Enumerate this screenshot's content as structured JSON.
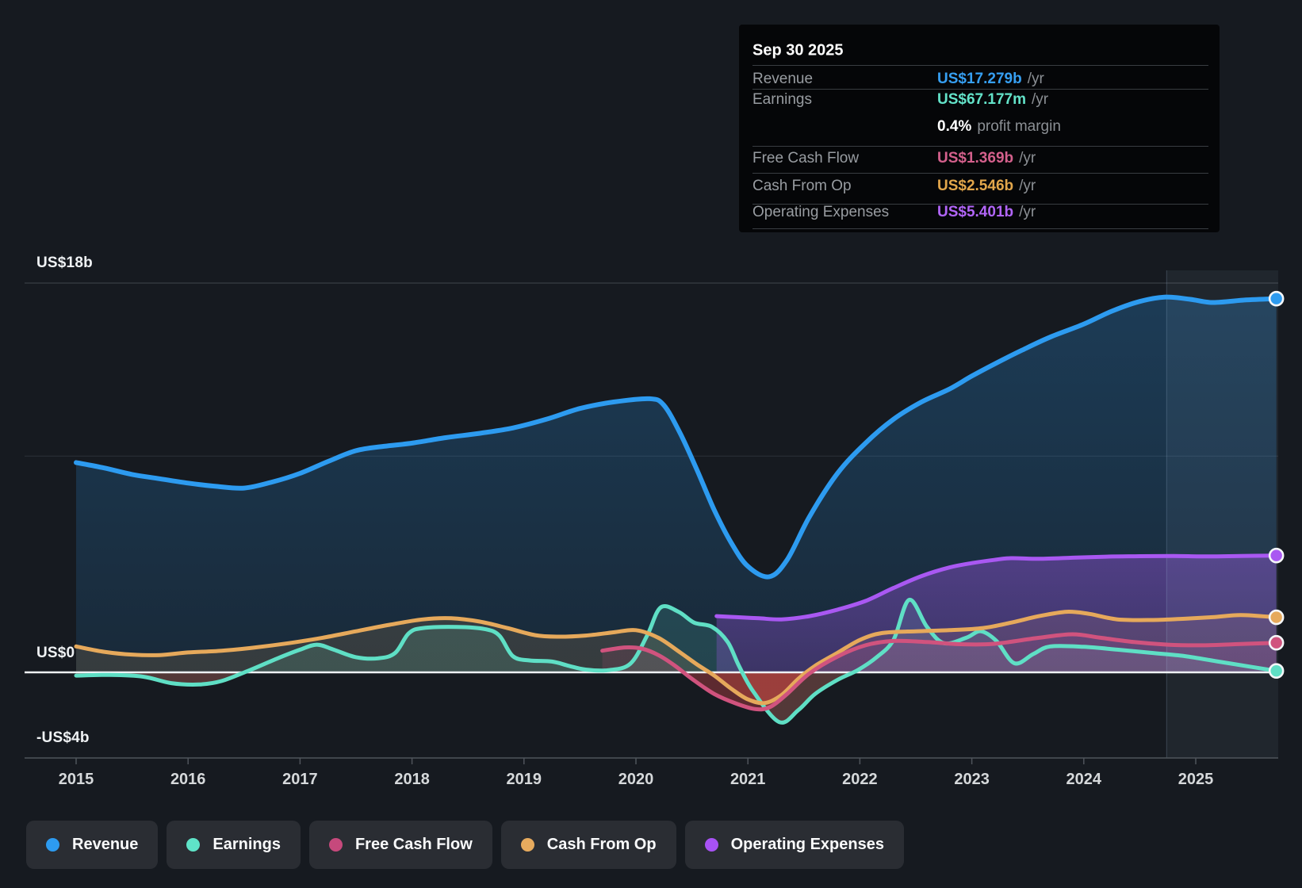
{
  "tooltip": {
    "title": "Sep 30 2025",
    "rows": [
      {
        "key": "revenue",
        "label": "Revenue",
        "value": "US$17.279b",
        "suffix": "/yr",
        "color": "#369ff2"
      },
      {
        "key": "earnings",
        "label": "Earnings",
        "value": "US$67.177m",
        "suffix": "/yr",
        "color": "#63e3c9"
      },
      {
        "key": "profit-margin",
        "label": "",
        "value": "0.4%",
        "suffix": "profit margin",
        "color": "#ffffff"
      },
      {
        "key": "free-cash-flow",
        "label": "Free Cash Flow",
        "value": "US$1.369b",
        "suffix": "/yr",
        "color": "#d4608c"
      },
      {
        "key": "cash-from-op",
        "label": "Cash From Op",
        "value": "US$2.546b",
        "suffix": "/yr",
        "color": "#e2a64b"
      },
      {
        "key": "operating-expenses",
        "label": "Operating Expenses",
        "value": "US$5.401b",
        "suffix": "/yr",
        "color": "#b165f7"
      }
    ]
  },
  "y_axis": {
    "labels": [
      {
        "text": "US$18b",
        "value": 18
      },
      {
        "text": "US$0",
        "value": 0
      },
      {
        "text": "-US$4b",
        "value": -4
      }
    ]
  },
  "x_axis": {
    "years": [
      "2015",
      "2016",
      "2017",
      "2018",
      "2019",
      "2020",
      "2021",
      "2022",
      "2023",
      "2024",
      "2025"
    ]
  },
  "legend": [
    {
      "key": "revenue",
      "label": "Revenue",
      "color": "#2d9bf0"
    },
    {
      "key": "earnings",
      "label": "Earnings",
      "color": "#5fe3c8"
    },
    {
      "key": "free-cash-flow",
      "label": "Free Cash Flow",
      "color": "#c6497c"
    },
    {
      "key": "cash-from-op",
      "label": "Cash From Op",
      "color": "#e7ab5e"
    },
    {
      "key": "operating-expenses",
      "label": "Operating Expenses",
      "color": "#a852f5"
    }
  ],
  "chart_data": {
    "type": "area",
    "x_unit": "fiscal year (TTM)",
    "xlim": [
      2015,
      2025.85
    ],
    "ylim_billions": [
      -4,
      18
    ],
    "y_gridlines_billions": [
      18,
      10
    ],
    "zero_line_billions": 0,
    "axis_line_billions": -4,
    "highlight_band_from_year": 2024.74,
    "grid": true,
    "legend_position": "bottom",
    "series": [
      {
        "name": "Revenue",
        "key": "revenue",
        "color": "#2d9bf0",
        "line_width": 6,
        "fill_opacity_top": 0.26,
        "fill_opacity_bottom": 0.12,
        "points": [
          [
            2015.0,
            9.7
          ],
          [
            2015.25,
            9.45
          ],
          [
            2015.5,
            9.15
          ],
          [
            2015.75,
            8.95
          ],
          [
            2016.0,
            8.75
          ],
          [
            2016.25,
            8.6
          ],
          [
            2016.5,
            8.52
          ],
          [
            2016.75,
            8.8
          ],
          [
            2017.0,
            9.2
          ],
          [
            2017.25,
            9.75
          ],
          [
            2017.5,
            10.25
          ],
          [
            2017.75,
            10.45
          ],
          [
            2018.0,
            10.6
          ],
          [
            2018.3,
            10.85
          ],
          [
            2018.6,
            11.05
          ],
          [
            2018.9,
            11.3
          ],
          [
            2019.2,
            11.7
          ],
          [
            2019.5,
            12.2
          ],
          [
            2019.8,
            12.5
          ],
          [
            2020.12,
            12.65
          ],
          [
            2020.25,
            12.35
          ],
          [
            2020.4,
            11.0
          ],
          [
            2020.55,
            9.3
          ],
          [
            2020.7,
            7.5
          ],
          [
            2020.85,
            6.0
          ],
          [
            2021.0,
            4.9
          ],
          [
            2021.19,
            4.42
          ],
          [
            2021.35,
            5.2
          ],
          [
            2021.55,
            7.2
          ],
          [
            2021.8,
            9.2
          ],
          [
            2022.05,
            10.6
          ],
          [
            2022.3,
            11.7
          ],
          [
            2022.55,
            12.5
          ],
          [
            2022.8,
            13.1
          ],
          [
            2023.0,
            13.7
          ],
          [
            2023.2,
            14.25
          ],
          [
            2023.45,
            14.9
          ],
          [
            2023.7,
            15.5
          ],
          [
            2024.0,
            16.1
          ],
          [
            2024.25,
            16.7
          ],
          [
            2024.5,
            17.15
          ],
          [
            2024.72,
            17.35
          ],
          [
            2024.95,
            17.25
          ],
          [
            2025.15,
            17.1
          ],
          [
            2025.45,
            17.22
          ],
          [
            2025.72,
            17.279
          ]
        ]
      },
      {
        "name": "Earnings",
        "key": "earnings",
        "color": "#5fdfc5",
        "line_width": 5,
        "fill_opacity_top": 0.15,
        "fill_opacity_bottom": 0.15,
        "points": [
          [
            2015.0,
            -0.15
          ],
          [
            2015.3,
            -0.12
          ],
          [
            2015.6,
            -0.2
          ],
          [
            2015.85,
            -0.5
          ],
          [
            2016.1,
            -0.56
          ],
          [
            2016.3,
            -0.4
          ],
          [
            2016.55,
            0.1
          ],
          [
            2016.8,
            0.65
          ],
          [
            2017.0,
            1.05
          ],
          [
            2017.15,
            1.28
          ],
          [
            2017.3,
            1.05
          ],
          [
            2017.5,
            0.7
          ],
          [
            2017.7,
            0.65
          ],
          [
            2017.85,
            0.9
          ],
          [
            2017.97,
            1.8
          ],
          [
            2018.1,
            2.05
          ],
          [
            2018.4,
            2.1
          ],
          [
            2018.65,
            2.0
          ],
          [
            2018.78,
            1.7
          ],
          [
            2018.9,
            0.75
          ],
          [
            2019.05,
            0.55
          ],
          [
            2019.25,
            0.5
          ],
          [
            2019.4,
            0.3
          ],
          [
            2019.55,
            0.13
          ],
          [
            2019.75,
            0.1
          ],
          [
            2019.95,
            0.4
          ],
          [
            2020.1,
            1.7
          ],
          [
            2020.22,
            3.0
          ],
          [
            2020.38,
            2.8
          ],
          [
            2020.52,
            2.3
          ],
          [
            2020.68,
            2.1
          ],
          [
            2020.82,
            1.4
          ],
          [
            2020.92,
            0.3
          ],
          [
            2021.05,
            -0.9
          ],
          [
            2021.28,
            -2.3
          ],
          [
            2021.45,
            -1.75
          ],
          [
            2021.6,
            -1.0
          ],
          [
            2021.8,
            -0.35
          ],
          [
            2021.98,
            0.1
          ],
          [
            2022.15,
            0.7
          ],
          [
            2022.3,
            1.5
          ],
          [
            2022.44,
            3.35
          ],
          [
            2022.6,
            2.1
          ],
          [
            2022.75,
            1.35
          ],
          [
            2022.95,
            1.6
          ],
          [
            2023.08,
            1.9
          ],
          [
            2023.22,
            1.45
          ],
          [
            2023.38,
            0.42
          ],
          [
            2023.55,
            0.85
          ],
          [
            2023.7,
            1.2
          ],
          [
            2024.0,
            1.18
          ],
          [
            2024.3,
            1.05
          ],
          [
            2024.6,
            0.9
          ],
          [
            2024.9,
            0.75
          ],
          [
            2025.2,
            0.5
          ],
          [
            2025.5,
            0.25
          ],
          [
            2025.72,
            0.067
          ]
        ]
      },
      {
        "name": "Cash From Op",
        "key": "cash-from-op",
        "color": "#e6a95b",
        "line_width": 5,
        "fill_opacity_top": 0.14,
        "fill_opacity_bottom": 0.14,
        "points": [
          [
            2015.0,
            1.2
          ],
          [
            2015.25,
            0.95
          ],
          [
            2015.5,
            0.82
          ],
          [
            2015.75,
            0.8
          ],
          [
            2016.0,
            0.92
          ],
          [
            2016.3,
            1.0
          ],
          [
            2016.6,
            1.15
          ],
          [
            2016.9,
            1.35
          ],
          [
            2017.2,
            1.6
          ],
          [
            2017.5,
            1.9
          ],
          [
            2017.8,
            2.2
          ],
          [
            2018.1,
            2.45
          ],
          [
            2018.35,
            2.5
          ],
          [
            2018.6,
            2.35
          ],
          [
            2018.85,
            2.05
          ],
          [
            2019.1,
            1.72
          ],
          [
            2019.3,
            1.65
          ],
          [
            2019.55,
            1.7
          ],
          [
            2019.8,
            1.85
          ],
          [
            2020.0,
            1.95
          ],
          [
            2020.2,
            1.6
          ],
          [
            2020.4,
            0.9
          ],
          [
            2020.55,
            0.35
          ],
          [
            2020.7,
            -0.15
          ],
          [
            2020.85,
            -0.75
          ],
          [
            2021.0,
            -1.25
          ],
          [
            2021.15,
            -1.42
          ],
          [
            2021.3,
            -1.05
          ],
          [
            2021.45,
            -0.3
          ],
          [
            2021.6,
            0.3
          ],
          [
            2021.8,
            0.9
          ],
          [
            2022.0,
            1.5
          ],
          [
            2022.2,
            1.82
          ],
          [
            2022.5,
            1.9
          ],
          [
            2022.8,
            1.95
          ],
          [
            2023.1,
            2.05
          ],
          [
            2023.35,
            2.3
          ],
          [
            2023.6,
            2.6
          ],
          [
            2023.85,
            2.8
          ],
          [
            2024.05,
            2.7
          ],
          [
            2024.3,
            2.45
          ],
          [
            2024.6,
            2.42
          ],
          [
            2024.9,
            2.48
          ],
          [
            2025.15,
            2.55
          ],
          [
            2025.4,
            2.65
          ],
          [
            2025.72,
            2.546
          ]
        ]
      },
      {
        "name": "Free Cash Flow",
        "key": "free-cash-flow",
        "color": "#d0537e",
        "line_width": 5,
        "fill_opacity_top": 0.14,
        "fill_opacity_bottom": 0.14,
        "points": [
          [
            2019.7,
            1.0
          ],
          [
            2019.9,
            1.15
          ],
          [
            2020.05,
            1.1
          ],
          [
            2020.2,
            0.8
          ],
          [
            2020.35,
            0.3
          ],
          [
            2020.5,
            -0.3
          ],
          [
            2020.7,
            -1.0
          ],
          [
            2020.9,
            -1.45
          ],
          [
            2021.07,
            -1.7
          ],
          [
            2021.2,
            -1.6
          ],
          [
            2021.35,
            -1.0
          ],
          [
            2021.55,
            -0.05
          ],
          [
            2021.8,
            0.73
          ],
          [
            2022.05,
            1.25
          ],
          [
            2022.3,
            1.45
          ],
          [
            2022.6,
            1.4
          ],
          [
            2022.9,
            1.3
          ],
          [
            2023.2,
            1.32
          ],
          [
            2023.6,
            1.6
          ],
          [
            2023.9,
            1.76
          ],
          [
            2024.15,
            1.6
          ],
          [
            2024.45,
            1.4
          ],
          [
            2024.75,
            1.28
          ],
          [
            2025.05,
            1.25
          ],
          [
            2025.35,
            1.3
          ],
          [
            2025.72,
            1.369
          ]
        ]
      },
      {
        "name": "Operating Expenses",
        "key": "operating-expenses",
        "color": "#a958f2",
        "line_width": 5,
        "fill_opacity_top": 0.38,
        "fill_opacity_bottom": 0.24,
        "points": [
          [
            2020.72,
            2.6
          ],
          [
            2020.9,
            2.55
          ],
          [
            2021.1,
            2.5
          ],
          [
            2021.3,
            2.45
          ],
          [
            2021.55,
            2.6
          ],
          [
            2021.8,
            2.9
          ],
          [
            2022.05,
            3.3
          ],
          [
            2022.3,
            3.9
          ],
          [
            2022.55,
            4.45
          ],
          [
            2022.8,
            4.85
          ],
          [
            2023.0,
            5.05
          ],
          [
            2023.2,
            5.2
          ],
          [
            2023.35,
            5.28
          ],
          [
            2023.6,
            5.25
          ],
          [
            2023.9,
            5.3
          ],
          [
            2024.2,
            5.35
          ],
          [
            2024.5,
            5.37
          ],
          [
            2024.8,
            5.38
          ],
          [
            2025.1,
            5.36
          ],
          [
            2025.4,
            5.38
          ],
          [
            2025.72,
            5.401
          ]
        ]
      }
    ],
    "negative_fill_color": "#bd3c38",
    "negative_fill_opacity": 0.32,
    "negative_fill_series": [
      "earnings",
      "cash-from-op",
      "free-cash-flow"
    ]
  }
}
